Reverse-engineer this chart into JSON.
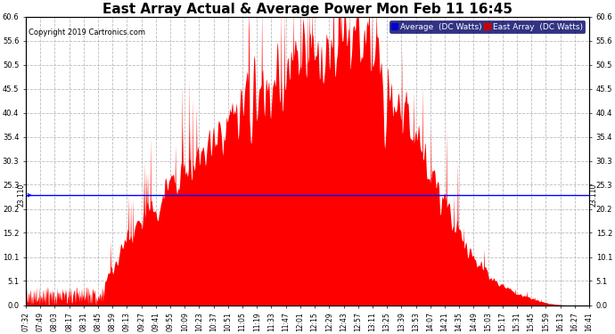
{
  "title": "East Array Actual & Average Power Mon Feb 11 16:45",
  "copyright": "Copyright 2019 Cartronics.com",
  "legend_labels": [
    "Average  (DC Watts)",
    "East Array  (DC Watts)"
  ],
  "legend_colors": [
    "#0000ff",
    "#ff0000"
  ],
  "avg_value": 23.11,
  "ylim": [
    0.0,
    60.6
  ],
  "yticks": [
    0.0,
    5.1,
    10.1,
    15.2,
    20.2,
    25.3,
    30.3,
    35.4,
    40.4,
    45.5,
    50.5,
    55.6,
    60.6
  ],
  "xtick_labels": [
    "07:32",
    "07:49",
    "08:03",
    "08:17",
    "08:31",
    "08:45",
    "08:59",
    "09:13",
    "09:27",
    "09:41",
    "09:55",
    "10:09",
    "10:23",
    "10:37",
    "10:51",
    "11:05",
    "11:19",
    "11:33",
    "11:47",
    "12:01",
    "12:15",
    "12:29",
    "12:43",
    "12:57",
    "13:11",
    "13:25",
    "13:39",
    "13:53",
    "14:07",
    "14:21",
    "14:35",
    "14:49",
    "15:03",
    "15:17",
    "15:31",
    "15:45",
    "15:59",
    "16:13",
    "16:27",
    "16:41"
  ],
  "fill_color": "#ff0000",
  "avg_line_color": "#0000ff",
  "background_color": "#ffffff",
  "grid_color": "#bbbbbb",
  "title_fontsize": 11,
  "tick_fontsize": 6,
  "copyright_fontsize": 6,
  "legend_fontsize": 6.5
}
